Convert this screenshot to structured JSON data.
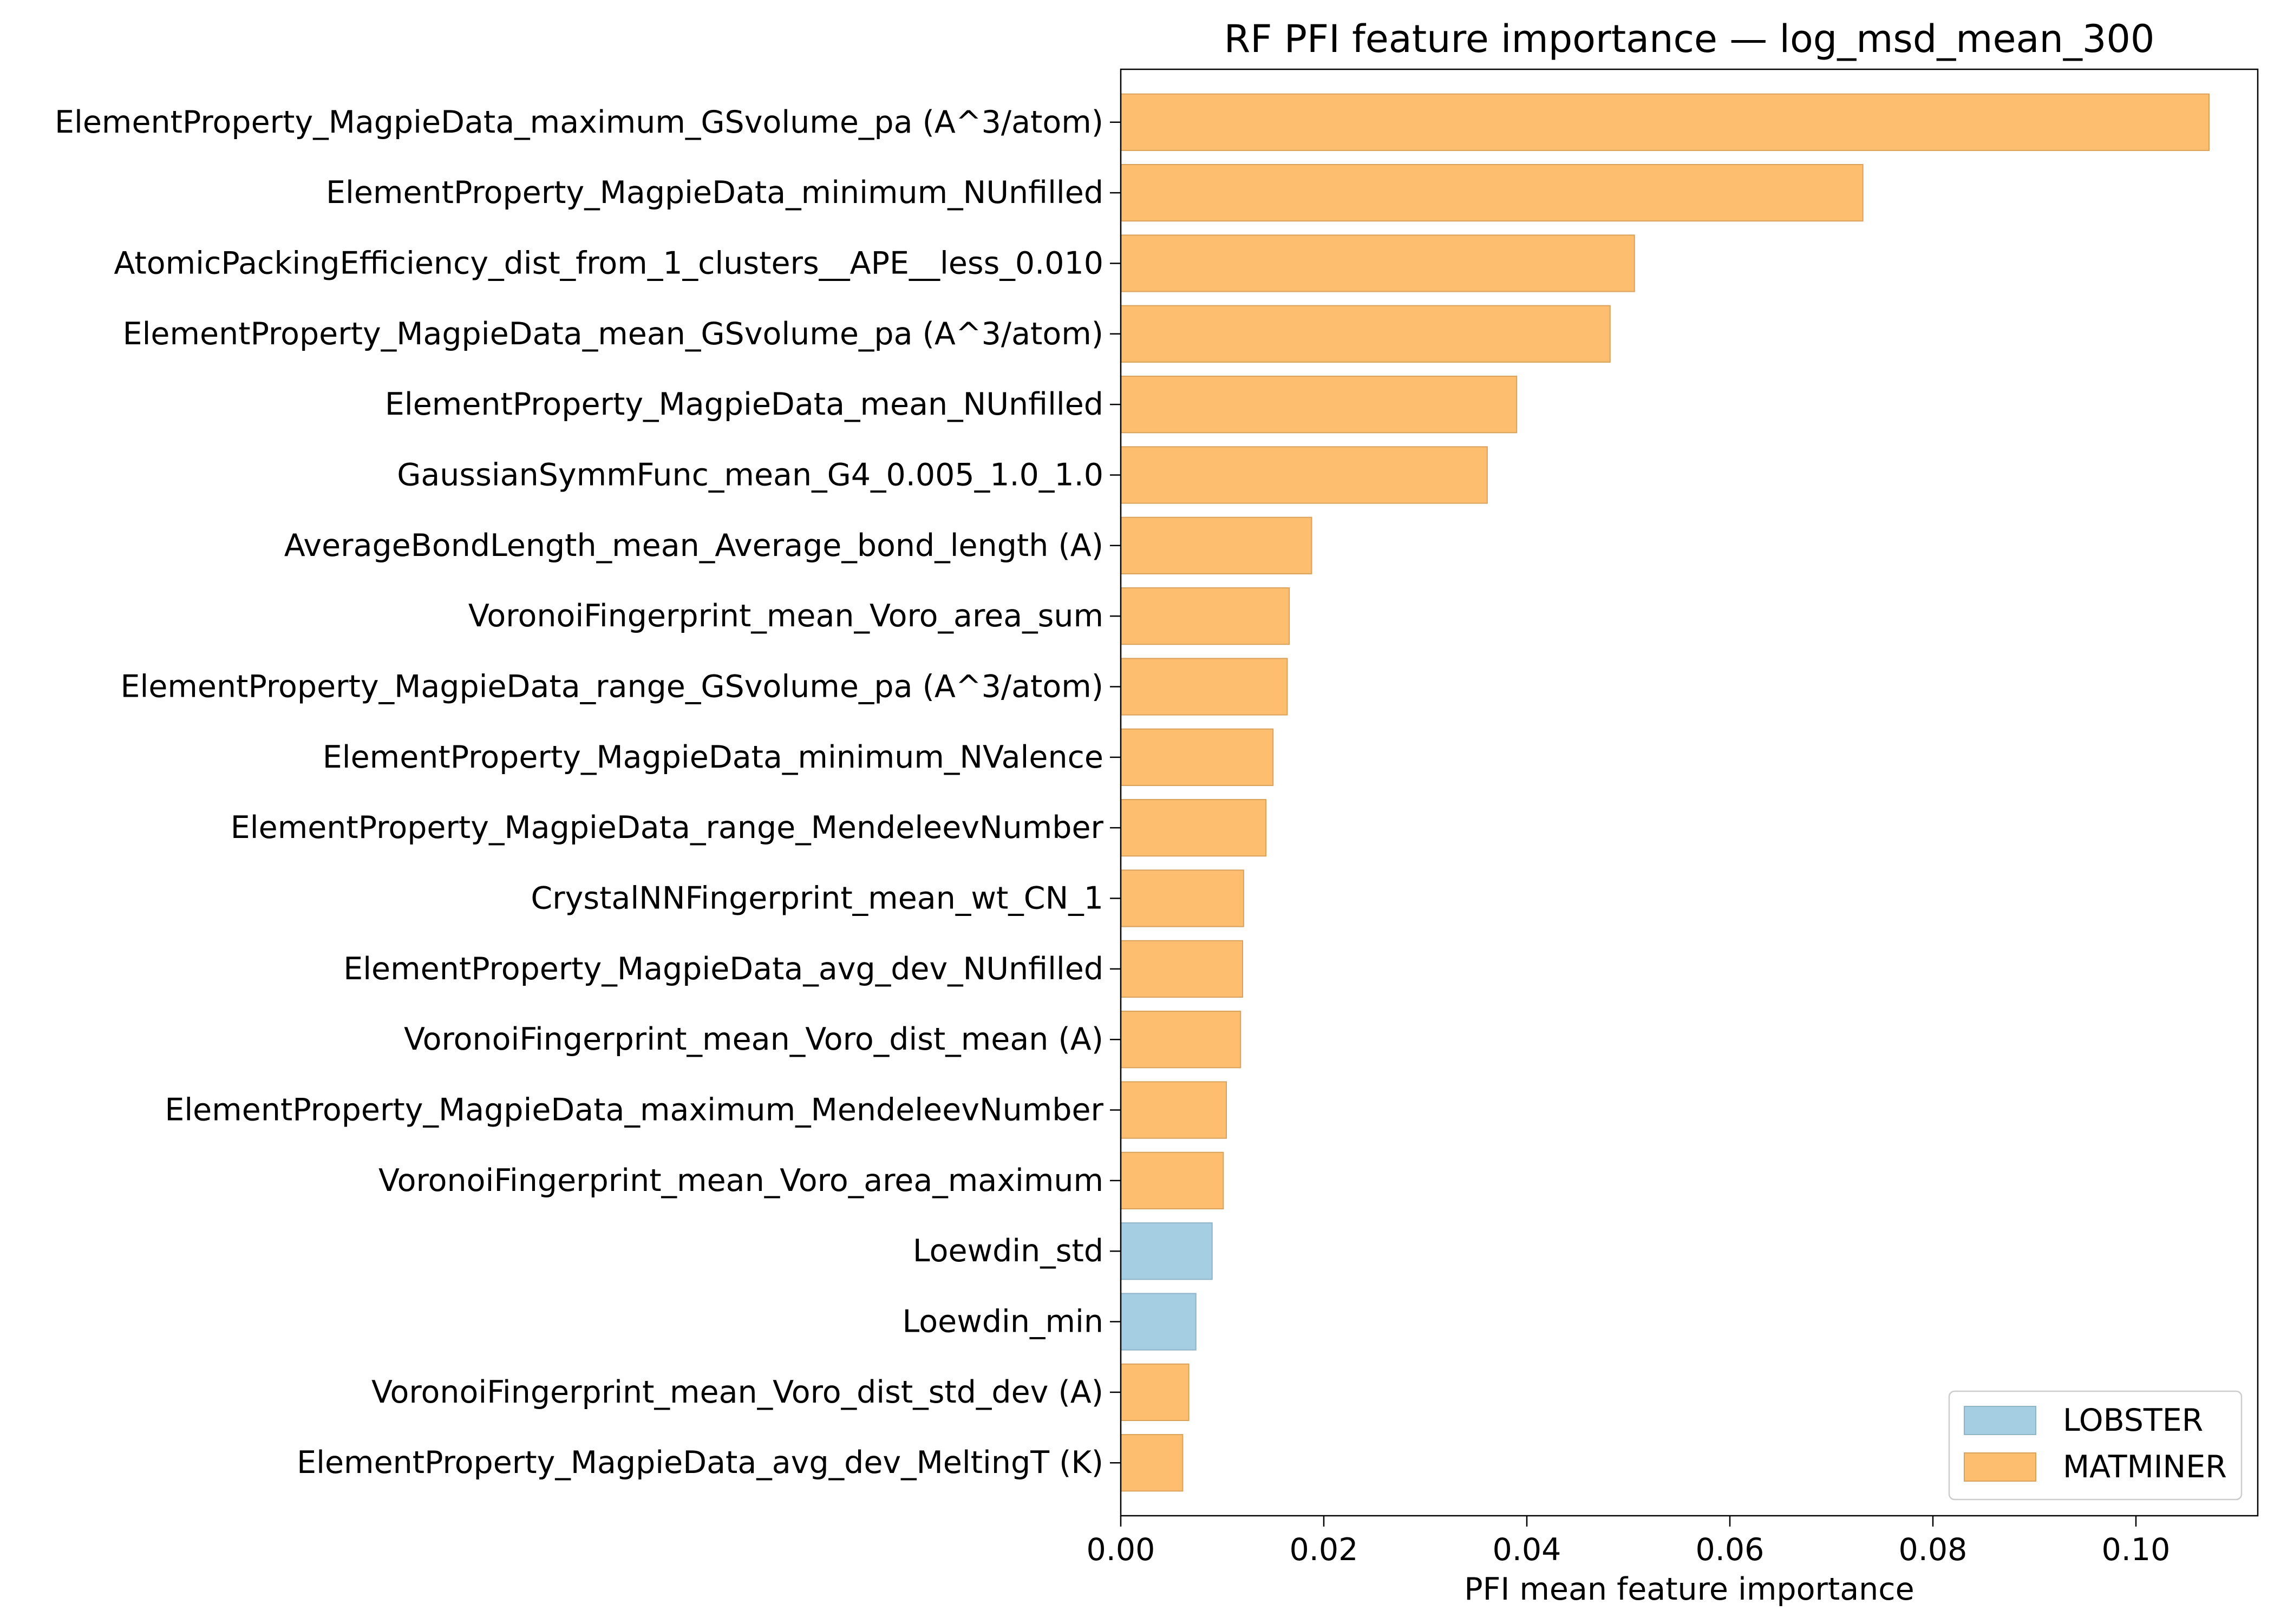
{
  "chart_data": {
    "type": "bar",
    "orientation": "horizontal",
    "title": "RF PFI feature importance — log_msd_mean_300",
    "xlabel": "PFI mean feature importance",
    "ylabel": "",
    "xlim": [
      0,
      0.112
    ],
    "xticks": [
      0.0,
      0.02,
      0.04,
      0.06,
      0.08,
      0.1
    ],
    "xtick_labels": [
      "0.00",
      "0.02",
      "0.04",
      "0.06",
      "0.08",
      "0.10"
    ],
    "grid": false,
    "legend_position": "bottom-right",
    "colors": {
      "LOBSTER": "#a6cee3",
      "MATMINER": "#fdbf6f",
      "LOBSTER_edge": "#8fb4c9",
      "MATMINER_edge": "#d9a25c"
    },
    "legend": [
      {
        "label": "LOBSTER",
        "group": "LOBSTER"
      },
      {
        "label": "MATMINER",
        "group": "MATMINER"
      }
    ],
    "bars": [
      {
        "label": "ElementProperty_MagpieData_maximum_GSvolume_pa (A^3/atom)",
        "value": 0.1072,
        "group": "MATMINER"
      },
      {
        "label": "ElementProperty_MagpieData_minimum_NUnfilled",
        "value": 0.0731,
        "group": "MATMINER"
      },
      {
        "label": "AtomicPackingEfficiency_dist_from_1_clusters__APE__less_0.010",
        "value": 0.0506,
        "group": "MATMINER"
      },
      {
        "label": "ElementProperty_MagpieData_mean_GSvolume_pa (A^3/atom)",
        "value": 0.0482,
        "group": "MATMINER"
      },
      {
        "label": "ElementProperty_MagpieData_mean_NUnfilled",
        "value": 0.039,
        "group": "MATMINER"
      },
      {
        "label": "GaussianSymmFunc_mean_G4_0.005_1.0_1.0",
        "value": 0.0361,
        "group": "MATMINER"
      },
      {
        "label": "AverageBondLength_mean_Average_bond_length (A)",
        "value": 0.0188,
        "group": "MATMINER"
      },
      {
        "label": "VoronoiFingerprint_mean_Voro_area_sum",
        "value": 0.0166,
        "group": "MATMINER"
      },
      {
        "label": "ElementProperty_MagpieData_range_GSvolume_pa (A^3/atom)",
        "value": 0.0164,
        "group": "MATMINER"
      },
      {
        "label": "ElementProperty_MagpieData_minimum_NValence",
        "value": 0.015,
        "group": "MATMINER"
      },
      {
        "label": "ElementProperty_MagpieData_range_MendeleevNumber",
        "value": 0.0143,
        "group": "MATMINER"
      },
      {
        "label": "CrystalNNFingerprint_mean_wt_CN_1",
        "value": 0.0121,
        "group": "MATMINER"
      },
      {
        "label": "ElementProperty_MagpieData_avg_dev_NUnfilled",
        "value": 0.012,
        "group": "MATMINER"
      },
      {
        "label": "VoronoiFingerprint_mean_Voro_dist_mean (A)",
        "value": 0.0118,
        "group": "MATMINER"
      },
      {
        "label": "ElementProperty_MagpieData_maximum_MendeleevNumber",
        "value": 0.0104,
        "group": "MATMINER"
      },
      {
        "label": "VoronoiFingerprint_mean_Voro_area_maximum",
        "value": 0.0101,
        "group": "MATMINER"
      },
      {
        "label": "Loewdin_std",
        "value": 0.009,
        "group": "LOBSTER"
      },
      {
        "label": "Loewdin_min",
        "value": 0.0074,
        "group": "LOBSTER"
      },
      {
        "label": "VoronoiFingerprint_mean_Voro_dist_std_dev (A)",
        "value": 0.0067,
        "group": "MATMINER"
      },
      {
        "label": "ElementProperty_MagpieData_avg_dev_MeltingT (K)",
        "value": 0.0061,
        "group": "MATMINER"
      }
    ]
  }
}
